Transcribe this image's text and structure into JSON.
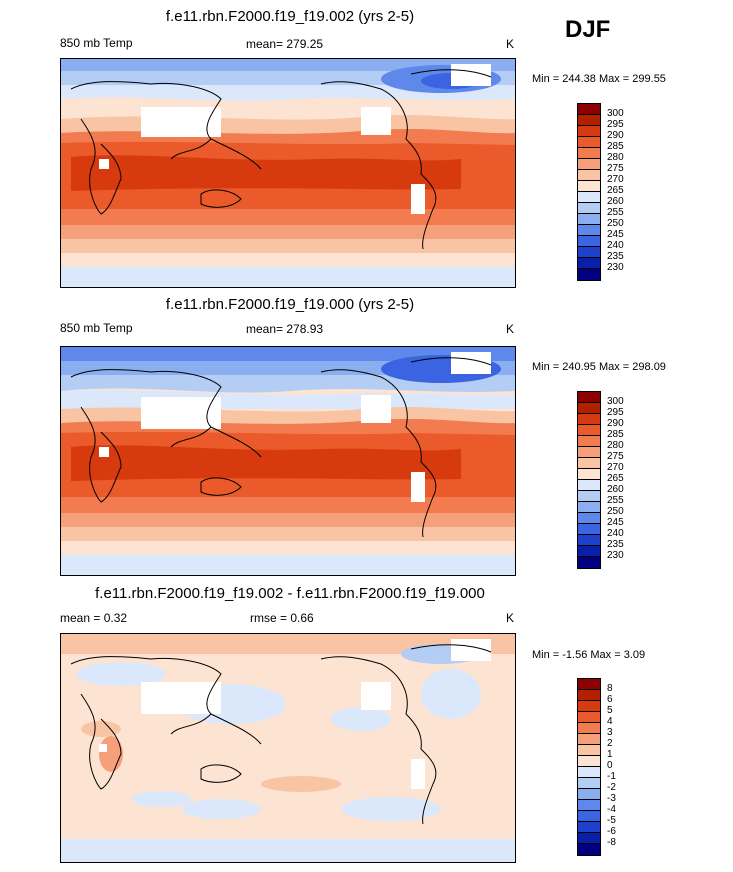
{
  "season": "DJF",
  "panels": [
    {
      "title": "f.e11.rbn.F2000.f19_f19.002 (yrs 2-5)",
      "left_label": "850 mb Temp",
      "center_label": "mean= 279.25",
      "units": "K",
      "minmax": "Min = 244.38 Max = 299.55"
    },
    {
      "title": "f.e11.rbn.F2000.f19_f19.000 (yrs 2-5)",
      "left_label": "850 mb Temp",
      "center_label": "mean= 278.93",
      "units": "K",
      "minmax": "Min = 240.95 Max = 298.09"
    },
    {
      "title": "f.e11.rbn.F2000.f19_f19.002 - f.e11.rbn.F2000.f19_f19.000",
      "left_label": "mean =   0.32",
      "center_label": "rmse =   0.66",
      "units": "K",
      "minmax": "Min =  -1.56 Max =   3.09"
    }
  ],
  "colorbar_abs": {
    "labels": [
      "300",
      "295",
      "290",
      "285",
      "280",
      "275",
      "270",
      "265",
      "260",
      "255",
      "250",
      "245",
      "240",
      "235",
      "230"
    ],
    "colors": [
      "#8b0000",
      "#b22000",
      "#d83a10",
      "#ea5a2a",
      "#f27c50",
      "#f5a07a",
      "#f9c4a4",
      "#fde4d2",
      "#dbe8fb",
      "#b4cdf5",
      "#8aaef0",
      "#5e88ea",
      "#3a64e2",
      "#1f40cc",
      "#0a1fa8",
      "#000080"
    ]
  },
  "colorbar_diff": {
    "labels": [
      "8",
      "6",
      "5",
      "4",
      "3",
      "2",
      "1",
      "0",
      "-1",
      "-2",
      "-3",
      "-4",
      "-5",
      "-6",
      "-8"
    ],
    "colors": [
      "#8b0000",
      "#b22000",
      "#d83a10",
      "#ea5a2a",
      "#f27c50",
      "#f5a07a",
      "#f9c4a4",
      "#fde4d2",
      "#dbe8fb",
      "#b4cdf5",
      "#8aaef0",
      "#5e88ea",
      "#3a64e2",
      "#1f40cc",
      "#0a1fa8",
      "#000080"
    ]
  }
}
